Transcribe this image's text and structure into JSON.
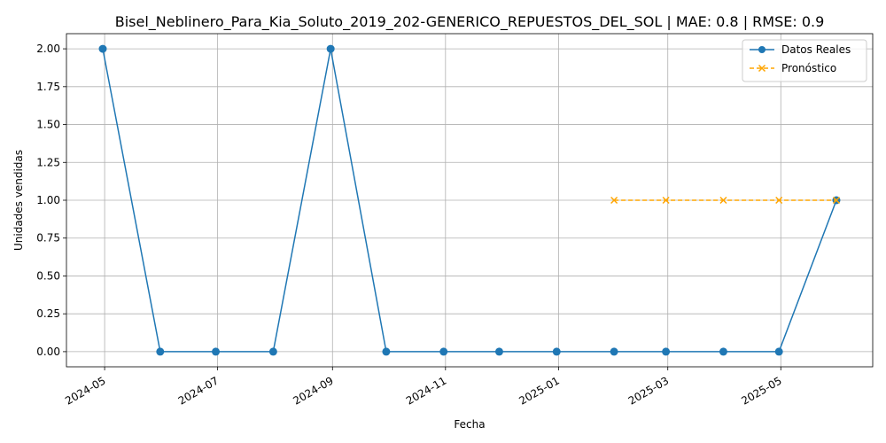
{
  "chart_data": {
    "type": "line",
    "title": "Bisel_Neblinero_Para_Kia_Soluto_2019_202-GENERICO_REPUESTOS_DEL_SOL | MAE: 0.8 | RMSE: 0.9",
    "xlabel": "Fecha",
    "ylabel": "Unidades vendidas",
    "ylim": [
      -0.1,
      2.1
    ],
    "grid": true,
    "legend_position": "top-right",
    "x_ticks": [
      "2024-05",
      "2024-07",
      "2024-09",
      "2024-11",
      "2025-01",
      "2025-03",
      "2025-05"
    ],
    "y_ticks": [
      "0.00",
      "0.25",
      "0.50",
      "0.75",
      "1.00",
      "1.25",
      "1.50",
      "1.75",
      "2.00"
    ],
    "series": [
      {
        "name": "Datos Reales",
        "color": "#1f77b4",
        "marker": "circle",
        "line_style": "solid",
        "x": [
          "2024-04-30",
          "2024-05-31",
          "2024-06-30",
          "2024-07-31",
          "2024-08-31",
          "2024-09-30",
          "2024-10-31",
          "2024-11-30",
          "2024-12-31",
          "2025-01-31",
          "2025-02-28",
          "2025-03-31",
          "2025-04-30",
          "2025-05-31"
        ],
        "y": [
          2,
          0,
          0,
          0,
          2,
          0,
          0,
          0,
          0,
          0,
          0,
          0,
          0,
          1
        ]
      },
      {
        "name": "Pronóstico",
        "color": "#ffa500",
        "marker": "x",
        "line_style": "dashed",
        "x": [
          "2025-01-31",
          "2025-02-28",
          "2025-03-31",
          "2025-04-30",
          "2025-05-31"
        ],
        "y": [
          1,
          1,
          1,
          1,
          1
        ]
      }
    ]
  }
}
